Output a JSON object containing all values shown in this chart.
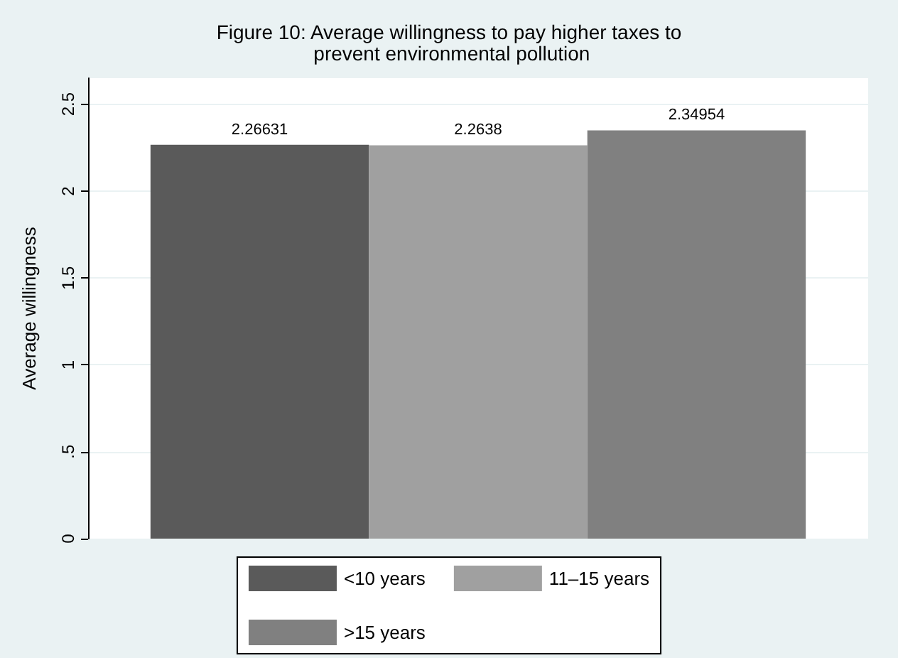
{
  "chart_data": {
    "type": "bar",
    "title": "Figure 10: Average willingness to pay higher taxes to prevent environmental pollution",
    "ylabel": "Average willingness",
    "categories": [
      null
    ],
    "series": [
      {
        "name": "<10 years",
        "color": "#5a5a5a",
        "values": [
          2.26631
        ]
      },
      {
        "name": "11–15 years",
        "color": "#a0a0a0",
        "values": [
          2.2638
        ]
      },
      {
        "name": ">15 years",
        "color": "#808080",
        "values": [
          2.34954
        ]
      }
    ],
    "ylim": [
      0,
      2.65
    ],
    "yticks": [
      0,
      {
        "value": 0.5,
        "label": ".5"
      },
      1,
      1.5,
      2,
      2.5
    ],
    "grid": "y",
    "legend": "bottom",
    "data_labels": true
  }
}
